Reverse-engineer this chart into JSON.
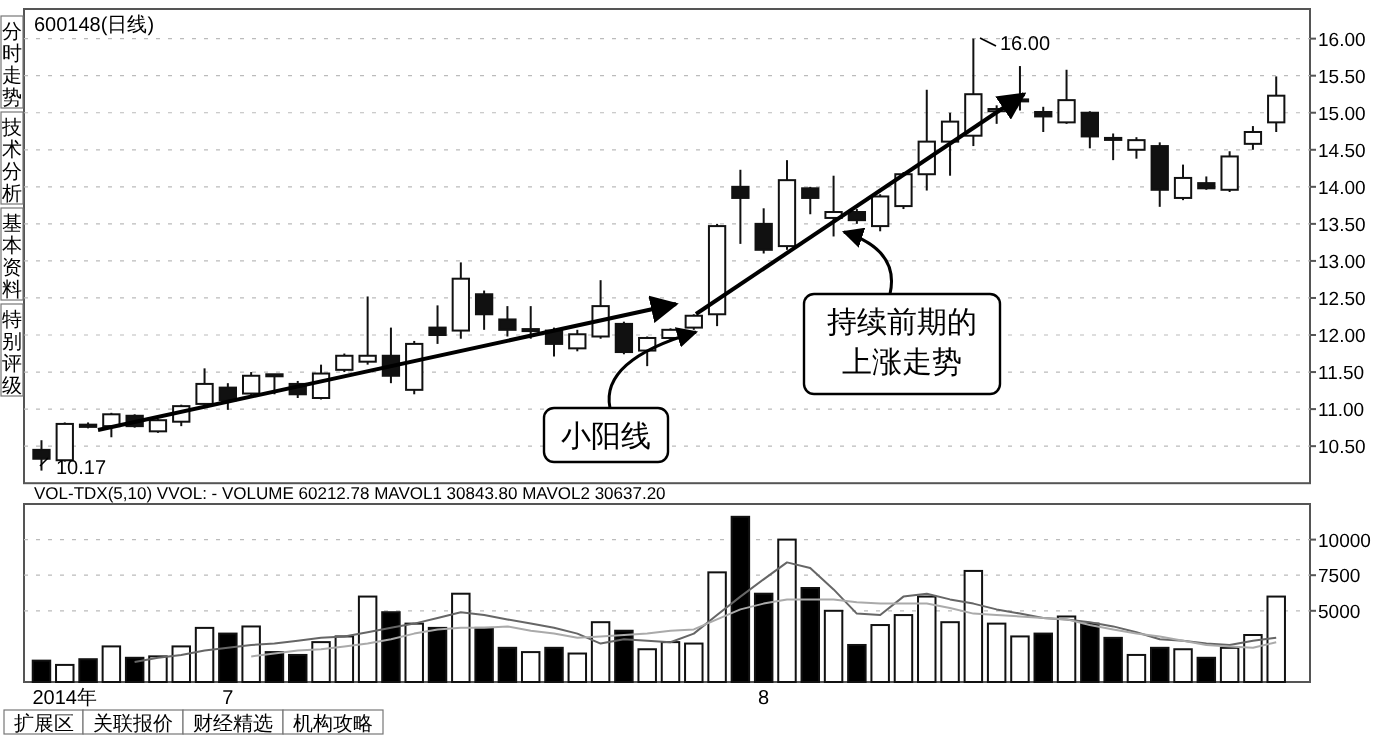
{
  "chart_data": [
    {
      "type": "candlestick",
      "title": "600148(日线)",
      "categories": [
        null,
        null,
        null,
        null,
        null,
        null,
        null,
        null,
        null,
        null,
        null,
        null,
        null,
        null,
        null,
        null,
        null,
        null,
        null,
        null,
        null,
        null,
        null,
        null,
        null,
        null,
        null,
        null,
        null,
        null,
        null,
        null,
        null,
        null,
        null,
        null,
        null,
        null,
        null,
        null,
        null,
        null,
        null,
        null,
        null,
        null,
        null,
        null,
        null,
        null,
        null,
        null,
        null,
        null
      ],
      "ohlc": [
        [
          10.45,
          10.58,
          10.17,
          10.33
        ],
        [
          10.31,
          10.82,
          10.29,
          10.8
        ],
        [
          10.79,
          10.82,
          10.74,
          10.76
        ],
        [
          10.77,
          10.95,
          10.62,
          10.93
        ],
        [
          10.91,
          10.93,
          10.75,
          10.77
        ],
        [
          10.7,
          10.87,
          10.68,
          10.85
        ],
        [
          10.83,
          11.06,
          10.77,
          11.04
        ],
        [
          11.07,
          11.55,
          11.04,
          11.34
        ],
        [
          11.29,
          11.35,
          10.99,
          11.12
        ],
        [
          11.21,
          11.5,
          11.15,
          11.45
        ],
        [
          11.45,
          11.47,
          11.2,
          11.47
        ],
        [
          11.34,
          11.38,
          11.15,
          11.2
        ],
        [
          11.15,
          11.6,
          11.13,
          11.48
        ],
        [
          11.53,
          11.75,
          11.5,
          11.72
        ],
        [
          11.64,
          12.52,
          11.6,
          11.72
        ],
        [
          11.72,
          12.1,
          11.35,
          11.45
        ],
        [
          11.26,
          11.92,
          11.2,
          11.88
        ],
        [
          12.1,
          12.4,
          11.88,
          12.0
        ],
        [
          12.06,
          12.98,
          11.95,
          12.76
        ],
        [
          12.55,
          12.6,
          12.07,
          12.28
        ],
        [
          12.21,
          12.39,
          11.98,
          12.07
        ],
        [
          12.06,
          12.39,
          11.95,
          12.08
        ],
        [
          12.06,
          12.1,
          11.71,
          11.88
        ],
        [
          11.82,
          12.07,
          11.78,
          12.01
        ],
        [
          11.98,
          12.74,
          11.95,
          12.39
        ],
        [
          12.15,
          12.18,
          11.74,
          11.77
        ],
        [
          11.79,
          11.98,
          11.58,
          11.96
        ],
        [
          11.96,
          12.09,
          11.92,
          12.07
        ],
        [
          12.1,
          12.28,
          12.07,
          12.26
        ],
        [
          12.28,
          13.5,
          12.12,
          13.47
        ],
        [
          14.0,
          14.23,
          13.23,
          13.85
        ],
        [
          13.5,
          13.71,
          13.1,
          13.15
        ],
        [
          13.2,
          14.36,
          13.15,
          14.09
        ],
        [
          13.98,
          14.0,
          13.63,
          13.85
        ],
        [
          13.58,
          14.15,
          13.33,
          13.66
        ],
        [
          13.66,
          13.7,
          13.5,
          13.55
        ],
        [
          13.47,
          13.9,
          13.4,
          13.87
        ],
        [
          13.74,
          14.2,
          13.7,
          14.17
        ],
        [
          14.17,
          15.31,
          13.95,
          14.61
        ],
        [
          14.61,
          15.0,
          14.15,
          14.88
        ],
        [
          14.69,
          16.0,
          14.55,
          15.25
        ],
        [
          15.02,
          15.1,
          14.85,
          15.05
        ],
        [
          15.17,
          15.63,
          15.03,
          15.18
        ],
        [
          15.01,
          15.08,
          14.74,
          14.95
        ],
        [
          14.87,
          15.58,
          14.85,
          15.17
        ],
        [
          15.0,
          15.02,
          14.52,
          14.68
        ],
        [
          14.65,
          14.72,
          14.36,
          14.66
        ],
        [
          14.5,
          14.67,
          14.38,
          14.63
        ],
        [
          14.55,
          14.6,
          13.73,
          13.96
        ],
        [
          13.85,
          14.3,
          13.82,
          14.12
        ],
        [
          14.05,
          14.14,
          13.96,
          13.98
        ],
        [
          13.96,
          14.48,
          13.93,
          14.41
        ],
        [
          14.58,
          14.82,
          14.5,
          14.74
        ],
        [
          14.87,
          15.49,
          14.74,
          15.23
        ]
      ],
      "ylim": [
        10,
        16.4
      ],
      "yticks": [
        {
          "value": 10.5,
          "label": "10.50"
        },
        {
          "value": 11,
          "label": "11.00"
        },
        {
          "value": 11.5,
          "label": "11.50"
        },
        {
          "value": 12,
          "label": "12.00"
        },
        {
          "value": 12.5,
          "label": "12.50"
        },
        {
          "value": 13,
          "label": "13.00"
        },
        {
          "value": 13.5,
          "label": "13.50"
        },
        {
          "value": 14,
          "label": "14.00"
        },
        {
          "value": 14.5,
          "label": "14.50"
        },
        {
          "value": 15,
          "label": "15.00"
        },
        {
          "value": 15.5,
          "label": "15.50"
        },
        {
          "value": 16,
          "label": "16.00"
        }
      ],
      "grid": "y",
      "annotations": [
        "10.17",
        "16.00",
        "小阳线",
        "持续前期的上涨走势",
        "分时走势",
        "技术分析",
        "基本资料",
        "特别评级"
      ]
    },
    {
      "type": "bar",
      "title": "VOL-TDX(5,10) VVOL: - VOLUME 60212.78 MAVOL1 30843.80 MAVOL2 30637.20",
      "categories": [
        null,
        "2014年",
        null,
        null,
        null,
        null,
        null,
        null,
        "7",
        null,
        null,
        null,
        null,
        null,
        null,
        null,
        null,
        null,
        null,
        null,
        null,
        null,
        null,
        null,
        null,
        null,
        null,
        null,
        null,
        null,
        null,
        "8",
        null,
        null,
        null,
        null,
        null,
        null,
        null,
        null,
        null,
        null,
        null,
        null,
        null,
        null,
        null,
        null,
        null,
        null,
        null,
        null,
        null,
        null
      ],
      "series": [
        {
          "type": "bar",
          "values": [
            1500,
            1200,
            1600,
            2500,
            1700,
            1800,
            2500,
            3800,
            3400,
            3900,
            2100,
            1900,
            2800,
            3200,
            6000,
            4900,
            4100,
            3800,
            6200,
            3800,
            2400,
            2100,
            2400,
            2000,
            4200,
            3600,
            2300,
            2800,
            2700,
            7700,
            11600,
            6200,
            10000,
            6600,
            5000,
            2600,
            4000,
            4700,
            6000,
            4200,
            7800,
            4100,
            3200,
            3400,
            4600,
            4100,
            3100,
            1900,
            2400,
            2300,
            1700,
            2400,
            3300,
            6000
          ],
          "colors": [
            "#000000",
            "#ffffff",
            "#000000",
            "#ffffff",
            "#000000",
            "#ffffff",
            "#ffffff",
            "#ffffff",
            "#000000",
            "#ffffff",
            "#000000",
            "#000000",
            "#ffffff",
            "#ffffff",
            "#ffffff",
            "#000000",
            "#ffffff",
            "#000000",
            "#ffffff",
            "#000000",
            "#000000",
            "#ffffff",
            "#000000",
            "#ffffff",
            "#ffffff",
            "#000000",
            "#ffffff",
            "#ffffff",
            "#ffffff",
            "#ffffff",
            "#000000",
            "#000000",
            "#ffffff",
            "#000000",
            "#ffffff",
            "#000000",
            "#ffffff",
            "#ffffff",
            "#ffffff",
            "#ffffff",
            "#ffffff",
            "#ffffff",
            "#ffffff",
            "#000000",
            "#ffffff",
            "#000000",
            "#000000",
            "#ffffff",
            "#000000",
            "#ffffff",
            "#000000",
            "#ffffff",
            "#ffffff",
            "#ffffff"
          ]
        },
        {
          "type": "line",
          "color": "#666666",
          "values": [
            null,
            null,
            null,
            null,
            1400,
            1700,
            1900,
            2200,
            2400,
            2600,
            2700,
            2900,
            3100,
            3200,
            3500,
            3800,
            4100,
            4500,
            4900,
            4700,
            4400,
            4100,
            3800,
            3400,
            2700,
            3000,
            2900,
            2800,
            3400,
            4700,
            6000,
            7200,
            8400,
            8000,
            6500,
            4800,
            4700,
            6000,
            6200,
            5800,
            5500,
            5100,
            4800,
            4500,
            4400,
            4200,
            3900,
            3500,
            3000,
            2900,
            2700,
            2600,
            2900,
            3100
          ]
        },
        {
          "type": "line",
          "color": "#aaaaaa",
          "values": [
            null,
            null,
            null,
            null,
            null,
            null,
            null,
            null,
            null,
            1800,
            2000,
            2200,
            2300,
            2500,
            2700,
            3000,
            3400,
            3700,
            3800,
            3800,
            3900,
            3600,
            3400,
            3100,
            3200,
            3300,
            3400,
            3600,
            3700,
            4400,
            5100,
            5500,
            5800,
            5800,
            5800,
            5600,
            5500,
            5500,
            5500,
            5200,
            4800,
            4700,
            4600,
            4500,
            4400,
            4000,
            3700,
            3400,
            3200,
            2900,
            2600,
            2500,
            2400,
            2800
          ]
        }
      ],
      "ylim": [
        0,
        12500
      ],
      "yticks": [
        5000,
        7500,
        10000
      ],
      "grid": "y",
      "annotations": [
        "扩展区",
        "关联报价",
        "财经精选",
        "机构攻略"
      ]
    }
  ]
}
